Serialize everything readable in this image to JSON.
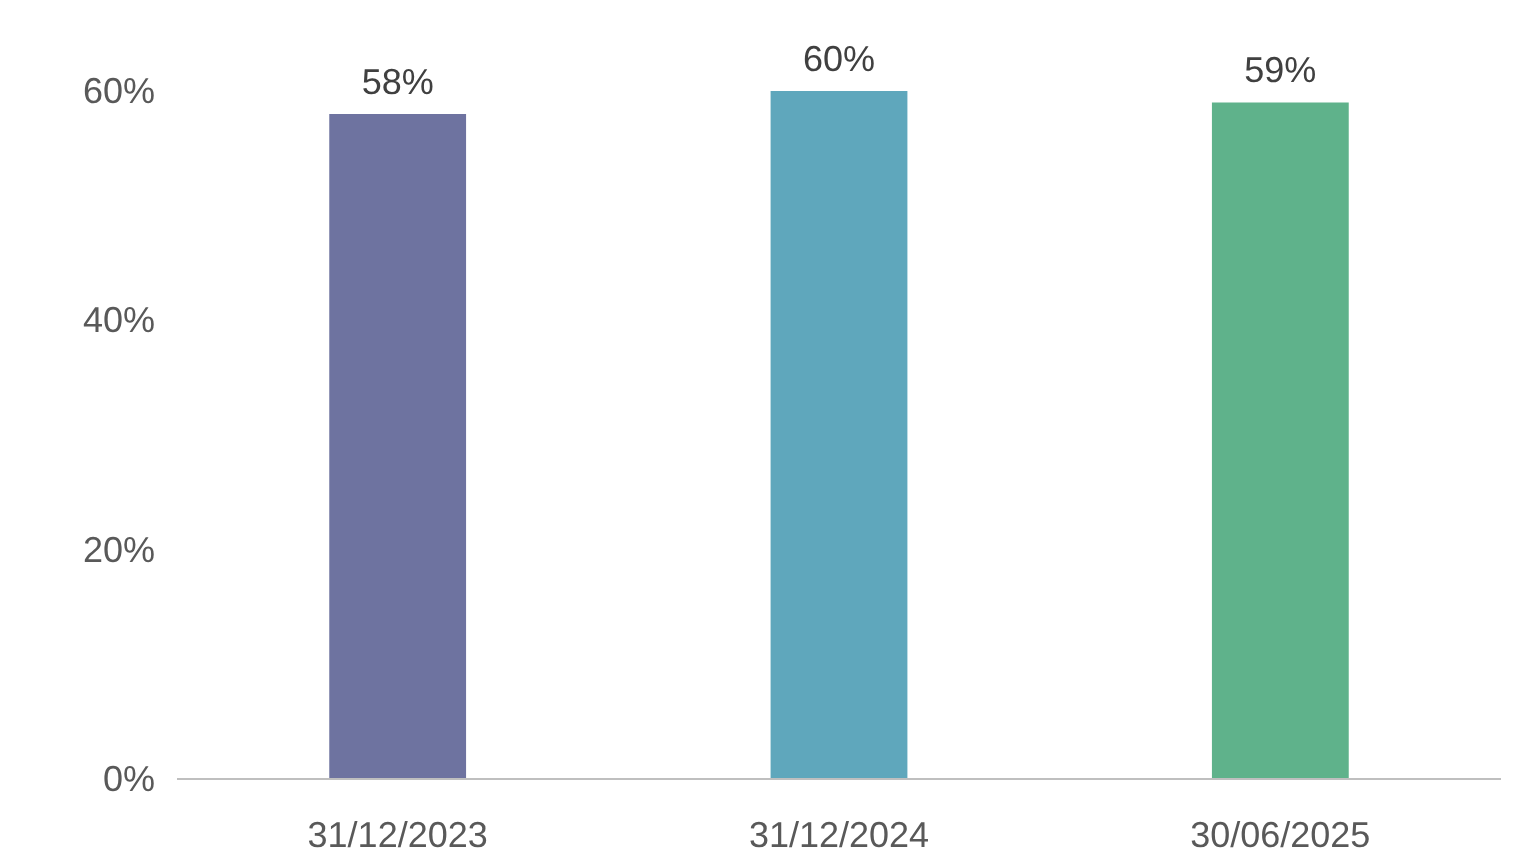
{
  "chart_data": {
    "type": "bar",
    "categories": [
      "31/12/2023",
      "31/12/2024",
      "30/06/2025"
    ],
    "values": [
      58,
      60,
      59
    ],
    "colors": [
      "#6e73a0",
      "#5fa7bc",
      "#5fb28b"
    ],
    "ylim": [
      0,
      60
    ],
    "yticks": [
      {
        "value": 0,
        "label": "0%"
      },
      {
        "value": 20,
        "label": "20%"
      },
      {
        "value": 40,
        "label": "40%"
      },
      {
        "value": 60,
        "label": "60%"
      }
    ],
    "value_labels": [
      "58%",
      "60%",
      "59%"
    ],
    "grid": false
  }
}
